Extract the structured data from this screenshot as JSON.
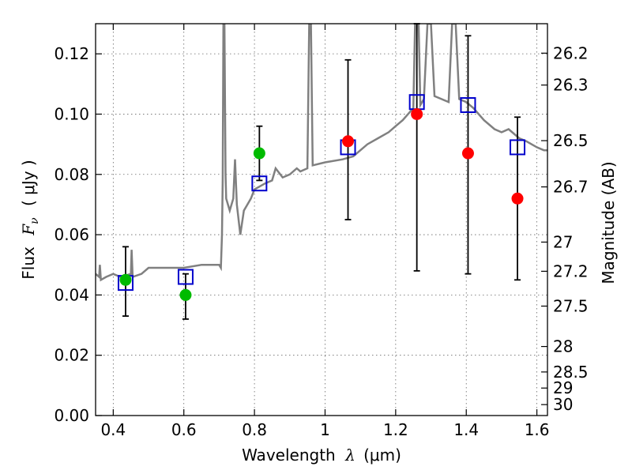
{
  "chart_data": {
    "type": "scatter",
    "x_axis": {
      "label_prefix": "Wavelength",
      "label_symbol": "λ",
      "label_unit": "(μm)",
      "range": [
        0.35,
        1.63
      ],
      "ticks": [
        0.4,
        0.6,
        0.8,
        1.0,
        1.2,
        1.4,
        1.6
      ],
      "tick_labels": [
        "0.4",
        "0.6",
        "0.8",
        "1",
        "1.2",
        "1.4",
        "1.6"
      ]
    },
    "y_axis": {
      "label_prefix": "Flux",
      "label_symbol": "F",
      "label_subscript": "ν",
      "label_unit": "( μJy )",
      "range": [
        0.0,
        0.13
      ],
      "ticks": [
        0.0,
        0.02,
        0.04,
        0.06,
        0.08,
        0.1,
        0.12
      ],
      "tick_labels": [
        "0.00",
        "0.02",
        "0.04",
        "0.06",
        "0.08",
        "0.10",
        "0.12"
      ]
    },
    "y2_axis": {
      "label": "Magnitude (AB)",
      "tick_labels": [
        "26.2",
        "26.3",
        "26.5",
        "26.7",
        "27",
        "27.2",
        "27.5",
        "28",
        "28.5",
        "29",
        "30"
      ]
    },
    "grid": true,
    "colors": {
      "spectrum": "#808080",
      "model_box": "#0000cc",
      "green_point": "#00bb00",
      "red_point": "#ff0000",
      "errorbar": "#000000"
    },
    "series": [
      {
        "name": "SED spectrum",
        "kind": "line",
        "points": [
          [
            0.35,
            0.047
          ],
          [
            0.36,
            0.046
          ],
          [
            0.362,
            0.05
          ],
          [
            0.365,
            0.045
          ],
          [
            0.38,
            0.046
          ],
          [
            0.4,
            0.047
          ],
          [
            0.42,
            0.046
          ],
          [
            0.45,
            0.047
          ],
          [
            0.452,
            0.055
          ],
          [
            0.455,
            0.046
          ],
          [
            0.48,
            0.047
          ],
          [
            0.5,
            0.049
          ],
          [
            0.55,
            0.049
          ],
          [
            0.6,
            0.049
          ],
          [
            0.65,
            0.05
          ],
          [
            0.7,
            0.05
          ],
          [
            0.705,
            0.049
          ],
          [
            0.708,
            0.06
          ],
          [
            0.71,
            0.078
          ],
          [
            0.712,
            0.13
          ],
          [
            0.715,
            0.13
          ],
          [
            0.718,
            0.08
          ],
          [
            0.72,
            0.072
          ],
          [
            0.73,
            0.068
          ],
          [
            0.74,
            0.072
          ],
          [
            0.745,
            0.085
          ],
          [
            0.75,
            0.07
          ],
          [
            0.76,
            0.06
          ],
          [
            0.77,
            0.068
          ],
          [
            0.78,
            0.07
          ],
          [
            0.79,
            0.072
          ],
          [
            0.8,
            0.075
          ],
          [
            0.83,
            0.077
          ],
          [
            0.85,
            0.078
          ],
          [
            0.86,
            0.082
          ],
          [
            0.88,
            0.079
          ],
          [
            0.9,
            0.08
          ],
          [
            0.92,
            0.082
          ],
          [
            0.93,
            0.081
          ],
          [
            0.95,
            0.082
          ],
          [
            0.955,
            0.13
          ],
          [
            0.96,
            0.13
          ],
          [
            0.965,
            0.083
          ],
          [
            1.0,
            0.084
          ],
          [
            1.05,
            0.085
          ],
          [
            1.08,
            0.086
          ],
          [
            1.1,
            0.088
          ],
          [
            1.12,
            0.09
          ],
          [
            1.15,
            0.092
          ],
          [
            1.18,
            0.094
          ],
          [
            1.2,
            0.096
          ],
          [
            1.22,
            0.098
          ],
          [
            1.25,
            0.102
          ],
          [
            1.255,
            0.13
          ],
          [
            1.265,
            0.13
          ],
          [
            1.27,
            0.103
          ],
          [
            1.28,
            0.105
          ],
          [
            1.29,
            0.13
          ],
          [
            1.3,
            0.13
          ],
          [
            1.31,
            0.106
          ],
          [
            1.33,
            0.105
          ],
          [
            1.35,
            0.104
          ],
          [
            1.36,
            0.13
          ],
          [
            1.37,
            0.13
          ],
          [
            1.38,
            0.105
          ],
          [
            1.4,
            0.104
          ],
          [
            1.42,
            0.102
          ],
          [
            1.45,
            0.098
          ],
          [
            1.48,
            0.095
          ],
          [
            1.5,
            0.094
          ],
          [
            1.52,
            0.095
          ],
          [
            1.55,
            0.092
          ],
          [
            1.57,
            0.091
          ],
          [
            1.6,
            0.089
          ],
          [
            1.62,
            0.088
          ],
          [
            1.63,
            0.088
          ]
        ]
      },
      {
        "name": "Model photometry",
        "kind": "square",
        "points": [
          [
            0.435,
            0.044
          ],
          [
            0.605,
            0.046
          ],
          [
            0.814,
            0.077
          ],
          [
            1.065,
            0.089
          ],
          [
            1.26,
            0.104
          ],
          [
            1.405,
            0.103
          ],
          [
            1.545,
            0.089
          ]
        ]
      },
      {
        "name": "Observed (green)",
        "kind": "circle",
        "points": [
          [
            0.435,
            0.045
          ],
          [
            0.605,
            0.04
          ],
          [
            0.814,
            0.087
          ]
        ]
      },
      {
        "name": "Observed (red)",
        "kind": "circle",
        "points": [
          [
            1.065,
            0.091
          ],
          [
            1.26,
            0.1
          ],
          [
            1.405,
            0.087
          ],
          [
            1.545,
            0.072
          ]
        ]
      },
      {
        "name": "Error bars",
        "kind": "errorbar",
        "points": [
          [
            0.435,
            0.033,
            0.056
          ],
          [
            0.605,
            0.032,
            0.047
          ],
          [
            0.814,
            0.078,
            0.096
          ],
          [
            1.065,
            0.065,
            0.118
          ],
          [
            1.26,
            0.048,
            0.13
          ],
          [
            1.405,
            0.047,
            0.126
          ],
          [
            1.545,
            0.045,
            0.099
          ]
        ]
      }
    ]
  }
}
